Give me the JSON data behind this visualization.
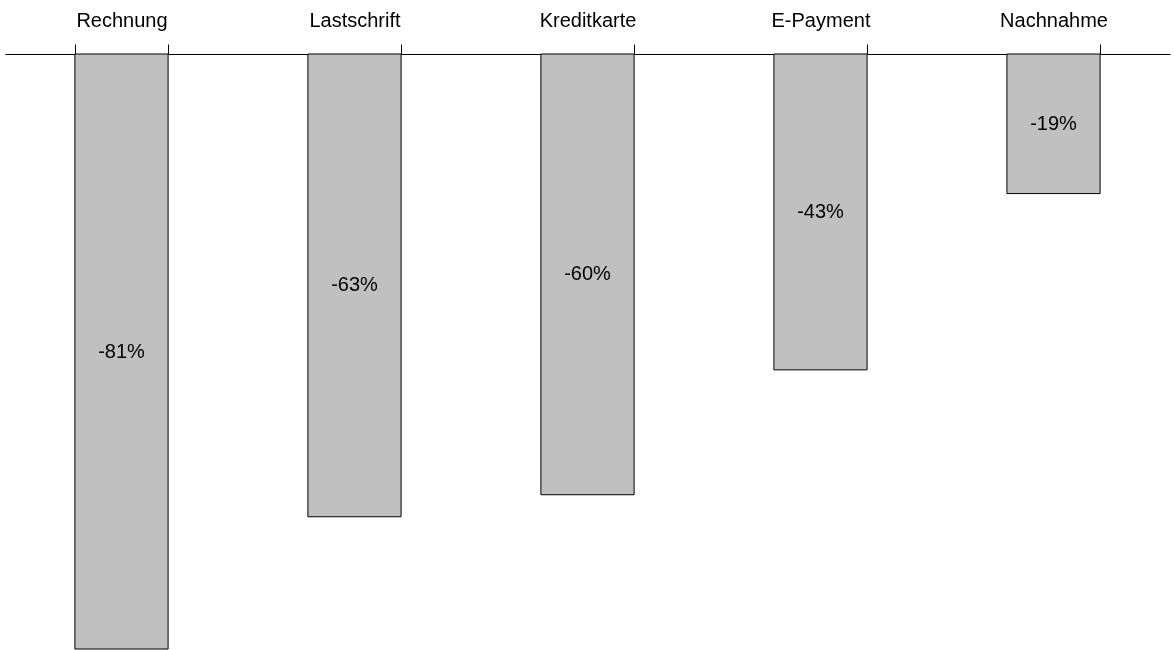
{
  "chart_data": {
    "type": "bar",
    "categories": [
      "Rechnung",
      "Lastschrift",
      "Kreditkarte",
      "E-Payment",
      "Nachnahme"
    ],
    "values": [
      -81,
      -63,
      -60,
      -43,
      -19
    ],
    "value_labels": [
      "-81%",
      "-63%",
      "-60%",
      "-43%",
      "-19%"
    ],
    "color": "#c0c0c0"
  }
}
